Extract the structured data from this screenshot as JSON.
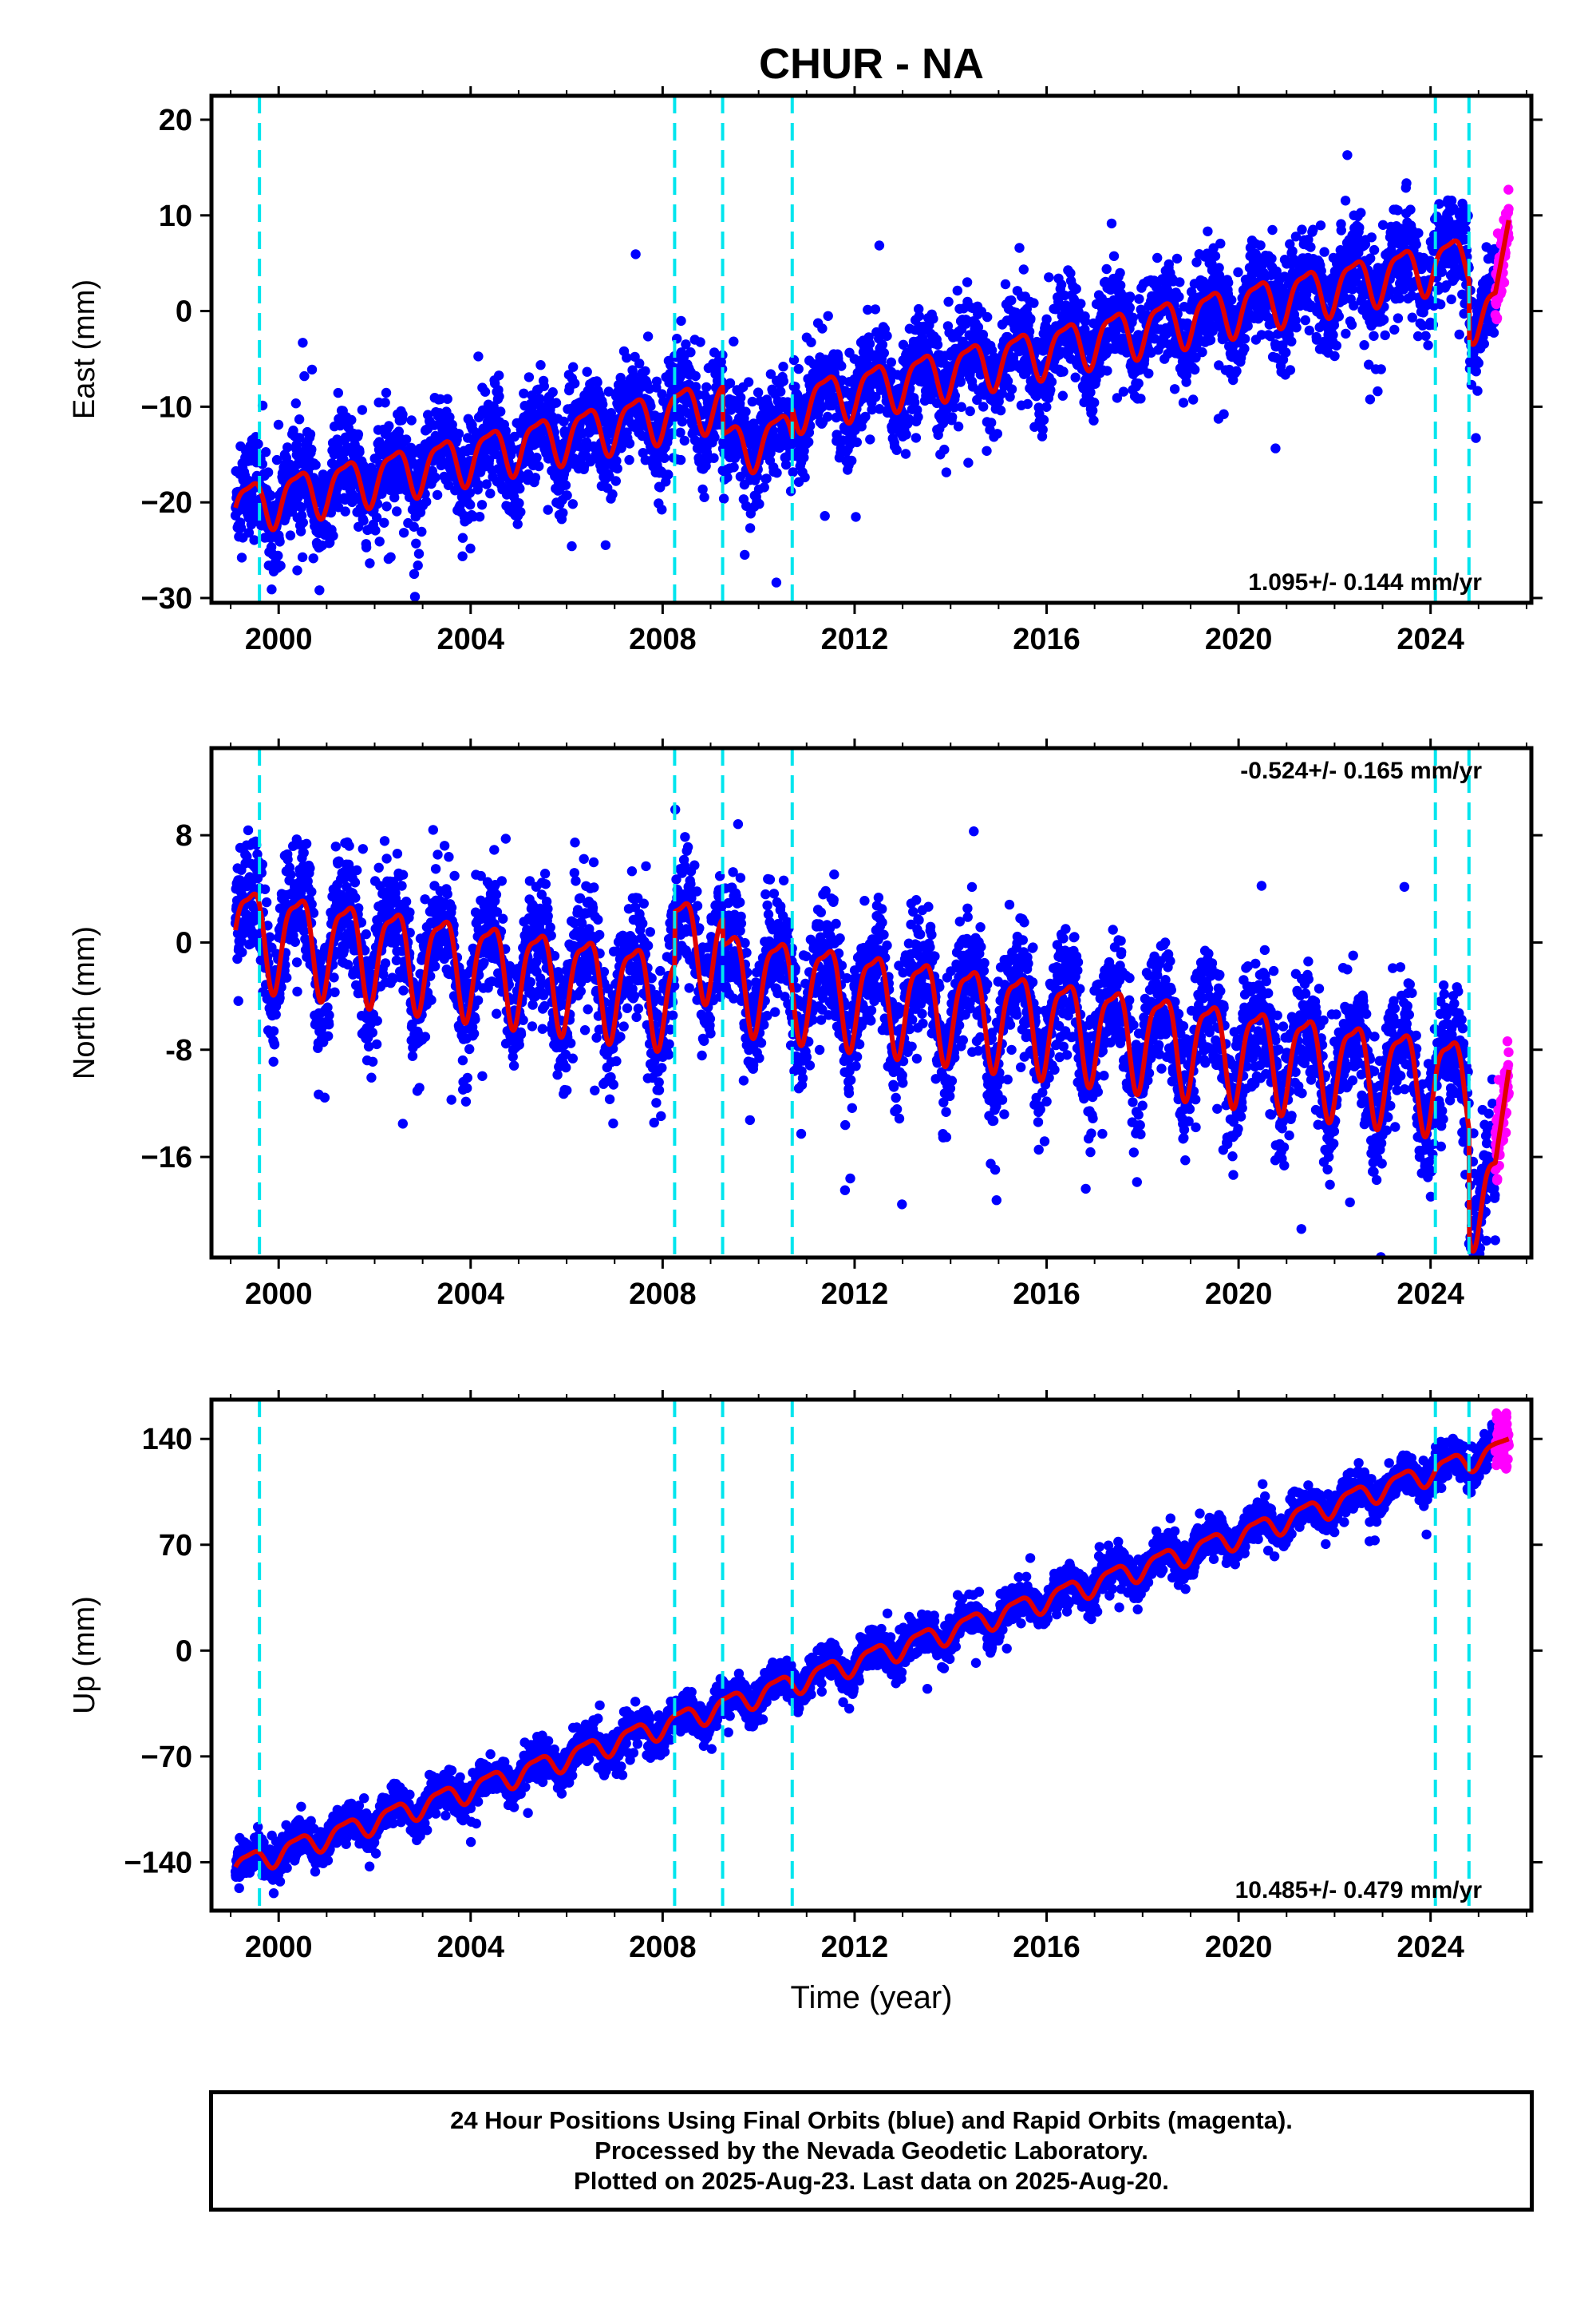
{
  "title": "CHUR - NA",
  "x_axis_label": "Time (year)",
  "footer": {
    "line1": "24 Hour Positions Using Final Orbits (blue) and Rapid Orbits (magenta).",
    "line2": "Processed by the Nevada Geodetic Laboratory.",
    "line3": "Plotted on 2025-Aug-23. Last data on 2025-Aug-20."
  },
  "colors": {
    "final_orbits": "#0000ff",
    "rapid_orbits": "#ff00ff",
    "fit": "#e00000",
    "equipment_change": "#00e5ee"
  },
  "chart_data": [
    {
      "type": "scatter",
      "component": "East",
      "ylabel": "East (mm)",
      "xlim": [
        1998.6,
        2026.1
      ],
      "ylim": [
        -30.5,
        22.5
      ],
      "x_ticks": [
        2000,
        2004,
        2008,
        2012,
        2016,
        2020,
        2024
      ],
      "y_ticks": [
        -30,
        -20,
        -10,
        0,
        10,
        20
      ],
      "y_tick_labels": [
        "−30",
        "−20",
        "−10",
        "0",
        "10",
        "20"
      ],
      "rate_label": "1.095+/- 0.144 mm/yr",
      "rate_position": "bottom-right",
      "grid": false,
      "series": [
        {
          "name": "Final Orbits (blue)",
          "x_range": [
            1999.1,
            2025.35
          ],
          "trend_start": -20.5,
          "trend_rate": 1.095,
          "seasonal_amplitude": 2.5,
          "scatter_sd": 2.6
        },
        {
          "name": "Rapid Orbits (magenta)",
          "x_range": [
            2025.35,
            2025.63
          ],
          "trend_end": 9.5,
          "scatter_sd": 1.8
        }
      ],
      "fit_curve": {
        "start": -17.5,
        "end": 9.5
      },
      "offsets": [
        {
          "year": 2009.25,
          "east_mm": -5
        },
        {
          "year": 2010.7,
          "east_mm": 3
        },
        {
          "year": 2024.8,
          "east_mm": -6
        }
      ],
      "equipment_changes": [
        1999.6,
        2008.25,
        2009.25,
        2010.7,
        2024.1,
        2024.8
      ]
    },
    {
      "type": "scatter",
      "component": "North",
      "ylabel": "North (mm)",
      "xlim": [
        1998.6,
        2026.1
      ],
      "ylim": [
        -23.5,
        14.5
      ],
      "x_ticks": [
        2000,
        2004,
        2008,
        2012,
        2016,
        2020,
        2024
      ],
      "y_ticks": [
        -16,
        -8,
        0,
        8
      ],
      "y_tick_labels": [
        "−16",
        "-8",
        "0",
        "8"
      ],
      "rate_label": "-0.524+/- 0.165 mm/yr",
      "rate_position": "top-right",
      "grid": false,
      "series": [
        {
          "name": "Final Orbits (blue)",
          "x_range": [
            1999.1,
            2025.35
          ],
          "trend_start": 1.0,
          "trend_rate": -0.524,
          "seasonal_amplitude": 3.5,
          "scatter_sd": 2.3
        },
        {
          "name": "Rapid Orbits (magenta)",
          "x_range": [
            2025.35,
            2025.63
          ],
          "trend_end": -9.5,
          "scatter_sd": 1.6
        }
      ],
      "fit_curve": {
        "start": 0.5,
        "end": -9.0,
        "min": -15.0
      },
      "offsets": [
        {
          "year": 2008.25,
          "north_mm": 4
        },
        {
          "year": 2009.25,
          "north_mm": -2
        },
        {
          "year": 2024.8,
          "north_mm": -8
        }
      ],
      "equipment_changes": [
        1999.6,
        2008.25,
        2009.25,
        2010.7,
        2024.1,
        2024.8
      ]
    },
    {
      "type": "scatter",
      "component": "Up",
      "ylabel": "Up (mm)",
      "xlim": [
        1998.6,
        2026.1
      ],
      "ylim": [
        -172,
        166
      ],
      "x_ticks": [
        2000,
        2004,
        2008,
        2012,
        2016,
        2020,
        2024
      ],
      "y_ticks": [
        -140,
        -70,
        0,
        70,
        140
      ],
      "y_tick_labels": [
        "−140",
        "−70",
        "0",
        "70",
        "140"
      ],
      "rate_label": "10.485+/- 0.479 mm/yr",
      "rate_position": "bottom-right",
      "grid": false,
      "series": [
        {
          "name": "Final Orbits (blue)",
          "x_range": [
            1999.1,
            2025.35
          ],
          "trend_start": -143,
          "trend_rate": 10.485,
          "seasonal_amplitude": 7,
          "scatter_sd": 6
        },
        {
          "name": "Rapid Orbits (magenta)",
          "x_range": [
            2025.35,
            2025.63
          ],
          "trend_end": 140,
          "scatter_sd": 7
        }
      ],
      "fit_curve": {
        "start": -143,
        "end": 140
      },
      "equipment_changes": [
        1999.6,
        2008.25,
        2009.25,
        2010.7,
        2024.1,
        2024.8
      ]
    }
  ]
}
